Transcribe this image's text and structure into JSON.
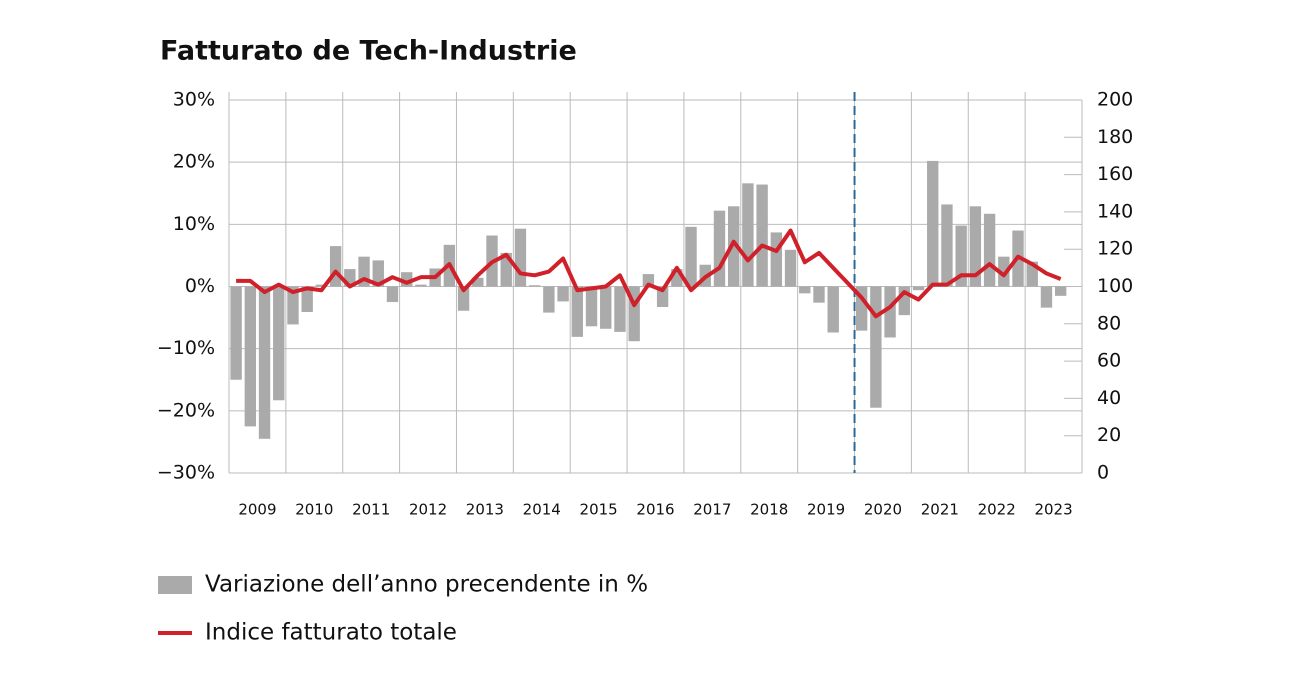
{
  "chart_data": {
    "type": "bar_line",
    "title": "Fatturato de Tech-Industrie",
    "categories": [
      "2009",
      null,
      null,
      null,
      "2010",
      null,
      null,
      null,
      "2011",
      null,
      null,
      null,
      "2012",
      null,
      null,
      null,
      "2013",
      null,
      null,
      null,
      "2014",
      null,
      null,
      null,
      "2015",
      null,
      null,
      null,
      "2016",
      null,
      null,
      null,
      "2017",
      null,
      null,
      null,
      "2018",
      null,
      null,
      null,
      "2019",
      null,
      null,
      null,
      "2020",
      null,
      null,
      null,
      "2021",
      null,
      null,
      null,
      "2022",
      null,
      null,
      null,
      "2023",
      null,
      null
    ],
    "series": [
      {
        "name": "Variazione dell’anno precendente in %",
        "color": "#aaaaaa",
        "type": "bar",
        "values": [
          -15,
          -22.5,
          -24.5,
          -18.3,
          -6.1,
          -4.1,
          0.3,
          6.5,
          2.8,
          4.8,
          4.2,
          -2.5,
          2.3,
          0.3,
          2.9,
          6.7,
          -3.9,
          1.4,
          8.2,
          5.4,
          9.3,
          0.2,
          -4.2,
          -2.4,
          -8.1,
          -6.4,
          -6.8,
          -7.3,
          -8.8,
          2.0,
          -3.3,
          2.8,
          9.6,
          3.5,
          12.2,
          12.9,
          16.6,
          16.4,
          8.7,
          5.9,
          -1.1,
          -2.6,
          -7.4,
          0,
          -7.1,
          -19.5,
          -8.2,
          -4.6,
          -0.6,
          20.2,
          13.2,
          9.8,
          12.9,
          11.7,
          4.8,
          9.0,
          4.0,
          -3.4,
          -1.5
        ]
      },
      {
        "name": "Indice fatturato totale",
        "color": "#d0202a",
        "type": "line",
        "axis": "y2",
        "values": [
          103,
          103,
          97,
          101,
          97,
          99,
          98,
          108,
          100,
          104,
          101,
          105,
          102,
          105,
          105,
          112,
          98,
          106,
          113,
          117,
          107,
          106,
          108,
          115,
          98,
          99,
          100,
          106,
          90,
          101,
          98,
          110,
          98,
          105,
          110,
          124,
          114,
          122,
          119,
          130,
          113,
          118,
          110,
          102,
          94,
          84,
          89,
          97,
          93,
          101,
          101,
          106,
          106,
          112,
          106,
          116,
          112,
          107,
          104
        ]
      }
    ],
    "ylim": [
      -30,
      30
    ],
    "yticks": [
      {
        "value": -30,
        "label": "−30%"
      },
      {
        "value": -20,
        "label": "−20%"
      },
      {
        "value": -10,
        "label": "−10%"
      },
      {
        "value": 0,
        "label": "0%"
      },
      {
        "value": 10,
        "label": "10%"
      },
      {
        "value": 20,
        "label": "20%"
      },
      {
        "value": 30,
        "label": "30%"
      }
    ],
    "y2lim": [
      0,
      200
    ],
    "y2ticks": [
      0,
      20,
      40,
      60,
      80,
      100,
      120,
      140,
      160,
      180,
      200
    ],
    "grid": true
  }
}
